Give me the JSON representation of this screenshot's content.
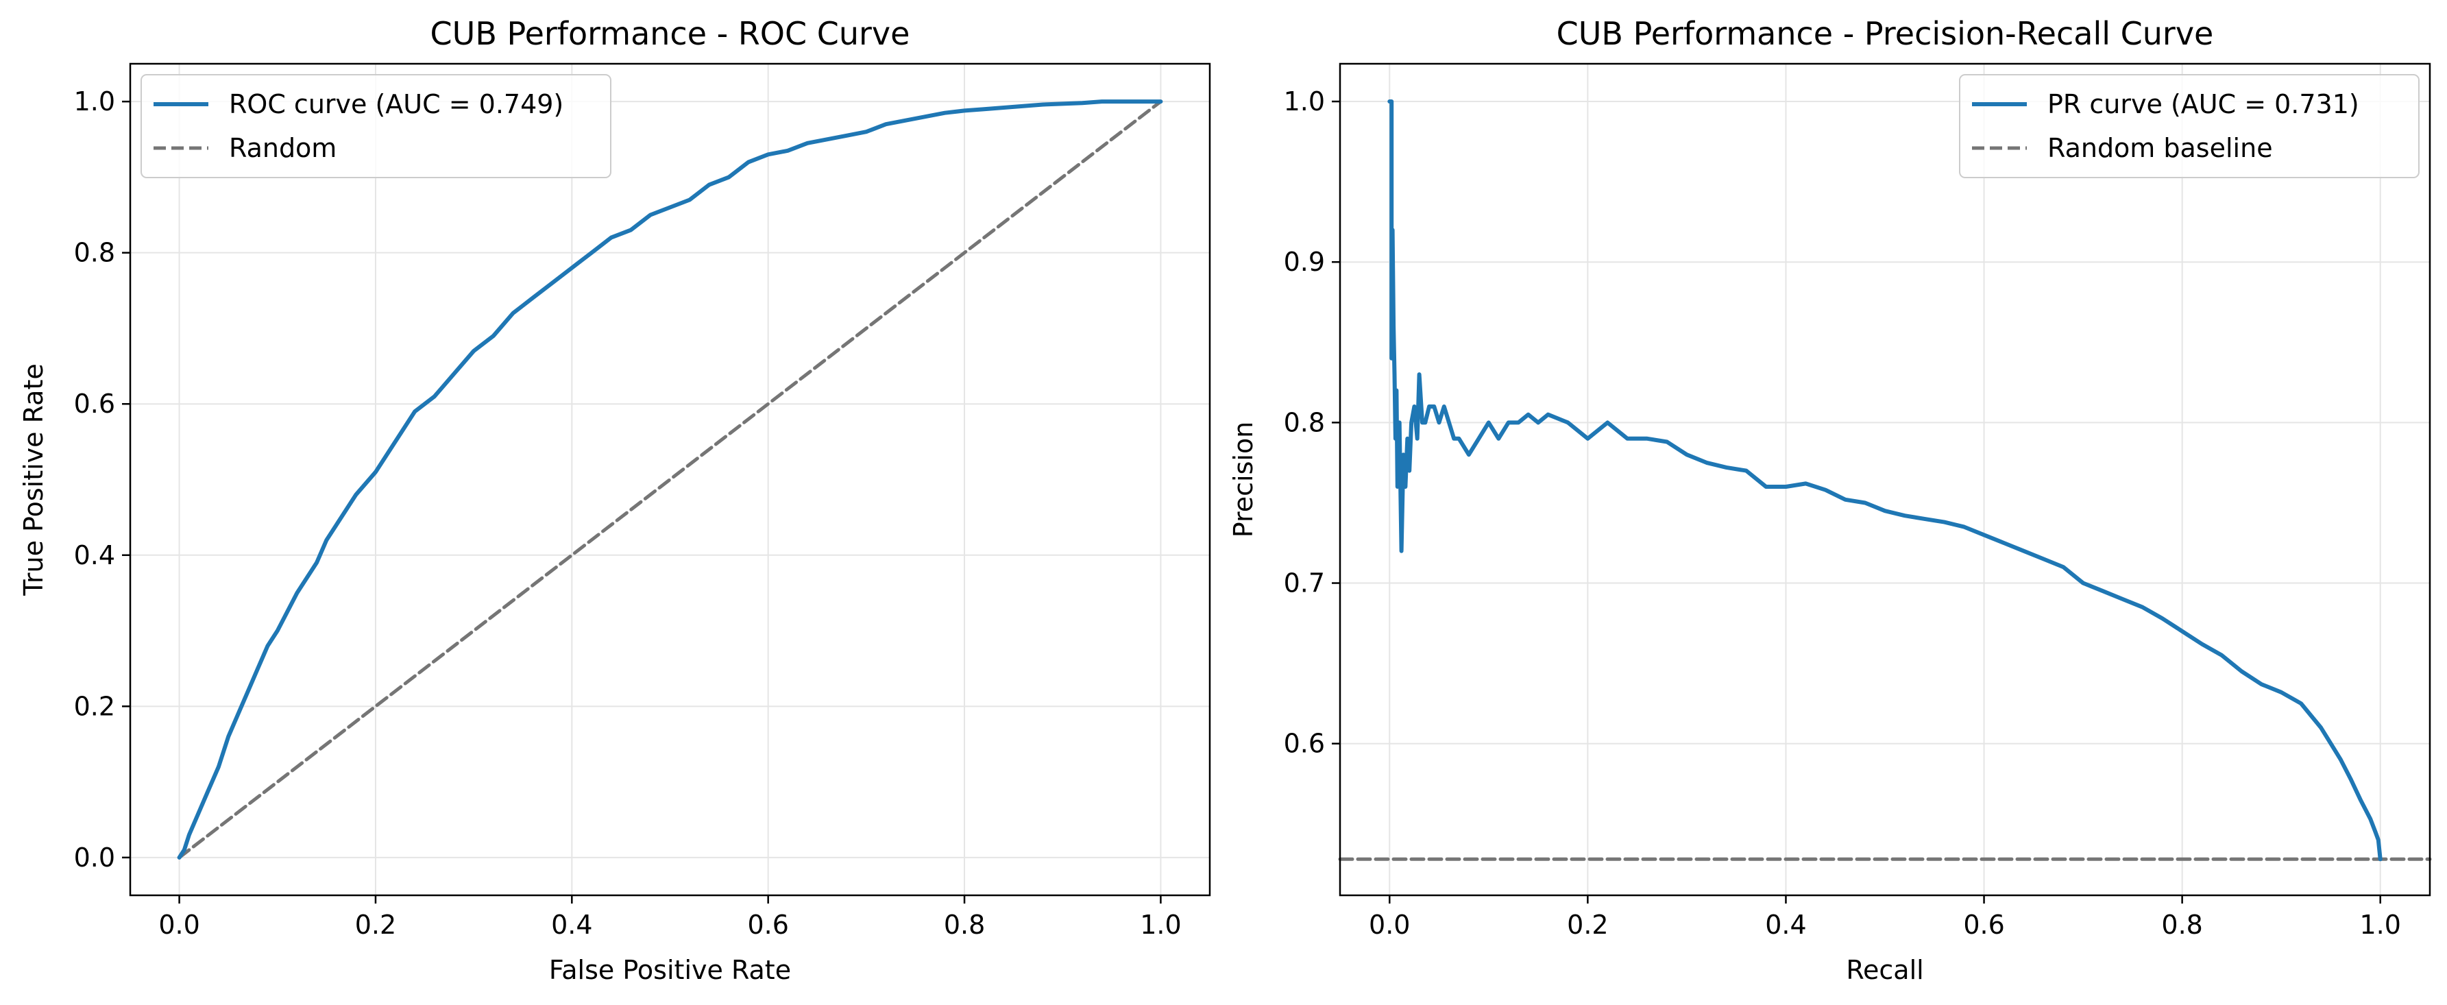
{
  "figure": {
    "colors": {
      "curve": "#1f77b4",
      "baseline": "#757575",
      "grid": "#e5e5e5",
      "axes": "#000000"
    }
  },
  "chart_data": [
    {
      "type": "line",
      "title": "CUB Performance - ROC Curve",
      "xlabel": "False Positive Rate",
      "ylabel": "True Positive Rate",
      "xlim": [
        -0.05,
        1.05
      ],
      "ylim": [
        -0.05,
        1.05
      ],
      "xticks": [
        0.0,
        0.2,
        0.4,
        0.6,
        0.8,
        1.0
      ],
      "yticks": [
        0.0,
        0.2,
        0.4,
        0.6,
        0.8,
        1.0
      ],
      "xtick_labels": [
        "0.0",
        "0.2",
        "0.4",
        "0.6",
        "0.8",
        "1.0"
      ],
      "ytick_labels": [
        "0.0",
        "0.2",
        "0.4",
        "0.6",
        "0.8",
        "1.0"
      ],
      "grid": true,
      "legend": {
        "position": "upper-left",
        "entries": [
          "ROC curve (AUC = 0.749)",
          "Random"
        ]
      },
      "series": [
        {
          "name": "ROC curve (AUC = 0.749)",
          "style": "solid",
          "x": [
            0.0,
            0.005,
            0.01,
            0.02,
            0.03,
            0.04,
            0.05,
            0.06,
            0.07,
            0.08,
            0.09,
            0.1,
            0.12,
            0.14,
            0.15,
            0.16,
            0.18,
            0.2,
            0.22,
            0.24,
            0.26,
            0.28,
            0.3,
            0.32,
            0.34,
            0.36,
            0.38,
            0.4,
            0.42,
            0.44,
            0.46,
            0.48,
            0.5,
            0.52,
            0.54,
            0.56,
            0.58,
            0.6,
            0.62,
            0.64,
            0.66,
            0.68,
            0.7,
            0.72,
            0.74,
            0.76,
            0.78,
            0.8,
            0.82,
            0.84,
            0.86,
            0.88,
            0.9,
            0.92,
            0.94,
            0.96,
            0.98,
            1.0
          ],
          "y": [
            0.0,
            0.01,
            0.03,
            0.06,
            0.09,
            0.12,
            0.16,
            0.19,
            0.22,
            0.25,
            0.28,
            0.3,
            0.35,
            0.39,
            0.42,
            0.44,
            0.48,
            0.51,
            0.55,
            0.59,
            0.61,
            0.64,
            0.67,
            0.69,
            0.72,
            0.74,
            0.76,
            0.78,
            0.8,
            0.82,
            0.83,
            0.85,
            0.86,
            0.87,
            0.89,
            0.9,
            0.92,
            0.93,
            0.935,
            0.945,
            0.95,
            0.955,
            0.96,
            0.97,
            0.975,
            0.98,
            0.985,
            0.988,
            0.99,
            0.992,
            0.994,
            0.996,
            0.997,
            0.998,
            1.0,
            1.0,
            1.0,
            1.0
          ]
        },
        {
          "name": "Random",
          "style": "dashed",
          "x": [
            0.0,
            1.0
          ],
          "y": [
            0.0,
            1.0
          ]
        }
      ]
    },
    {
      "type": "line",
      "title": "CUB Performance - Precision-Recall Curve",
      "xlabel": "Recall",
      "ylabel": "Precision",
      "xlim": [
        -0.05,
        1.05
      ],
      "ylim": [
        0.5055,
        1.0235
      ],
      "xticks": [
        0.0,
        0.2,
        0.4,
        0.6,
        0.8,
        1.0
      ],
      "yticks": [
        0.6,
        0.7,
        0.8,
        0.9,
        1.0
      ],
      "xtick_labels": [
        "0.0",
        "0.2",
        "0.4",
        "0.6",
        "0.8",
        "1.0"
      ],
      "ytick_labels": [
        "0.6",
        "0.7",
        "0.8",
        "0.9",
        "1.0"
      ],
      "grid": true,
      "legend": {
        "position": "upper-right",
        "entries": [
          "PR curve (AUC = 0.731)",
          "Random baseline"
        ]
      },
      "series": [
        {
          "name": "PR curve (AUC = 0.731)",
          "style": "solid",
          "x": [
            0.0,
            0.002,
            0.002,
            0.003,
            0.004,
            0.005,
            0.006,
            0.007,
            0.008,
            0.01,
            0.012,
            0.014,
            0.016,
            0.018,
            0.02,
            0.022,
            0.025,
            0.028,
            0.03,
            0.033,
            0.036,
            0.04,
            0.045,
            0.05,
            0.055,
            0.06,
            0.065,
            0.07,
            0.08,
            0.09,
            0.1,
            0.11,
            0.12,
            0.13,
            0.14,
            0.15,
            0.16,
            0.18,
            0.2,
            0.22,
            0.24,
            0.26,
            0.28,
            0.3,
            0.32,
            0.34,
            0.36,
            0.38,
            0.4,
            0.42,
            0.44,
            0.46,
            0.48,
            0.5,
            0.52,
            0.54,
            0.56,
            0.58,
            0.6,
            0.62,
            0.64,
            0.66,
            0.68,
            0.7,
            0.72,
            0.74,
            0.76,
            0.78,
            0.8,
            0.82,
            0.84,
            0.86,
            0.88,
            0.9,
            0.92,
            0.94,
            0.95,
            0.96,
            0.97,
            0.98,
            0.99,
            0.995,
            0.998,
            1.0
          ],
          "y": [
            1.0,
            1.0,
            0.84,
            0.92,
            0.86,
            0.83,
            0.79,
            0.82,
            0.76,
            0.8,
            0.72,
            0.78,
            0.76,
            0.79,
            0.77,
            0.8,
            0.81,
            0.79,
            0.83,
            0.8,
            0.8,
            0.81,
            0.81,
            0.8,
            0.81,
            0.8,
            0.79,
            0.79,
            0.78,
            0.79,
            0.8,
            0.79,
            0.8,
            0.8,
            0.805,
            0.8,
            0.805,
            0.8,
            0.79,
            0.8,
            0.79,
            0.79,
            0.788,
            0.78,
            0.775,
            0.772,
            0.77,
            0.76,
            0.76,
            0.762,
            0.758,
            0.752,
            0.75,
            0.745,
            0.742,
            0.74,
            0.738,
            0.735,
            0.73,
            0.725,
            0.72,
            0.715,
            0.71,
            0.7,
            0.695,
            0.69,
            0.685,
            0.678,
            0.67,
            0.662,
            0.655,
            0.645,
            0.637,
            0.632,
            0.625,
            0.61,
            0.6,
            0.59,
            0.578,
            0.565,
            0.553,
            0.545,
            0.54,
            0.528
          ]
        },
        {
          "name": "Random baseline",
          "style": "dashed",
          "x": [
            -0.05,
            1.05
          ],
          "y": [
            0.528,
            0.528
          ]
        }
      ]
    }
  ]
}
